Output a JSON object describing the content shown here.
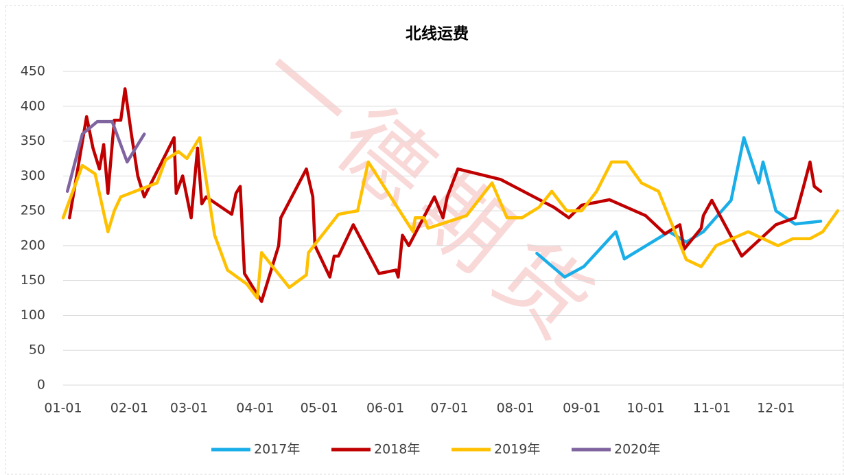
{
  "chart_data": {
    "type": "line",
    "title": "北线运费",
    "watermark": "一德期货",
    "xlim": [
      "01-01",
      "12-31"
    ],
    "xticks": [
      "01-01",
      "02-01",
      "03-01",
      "04-01",
      "05-01",
      "06-01",
      "07-01",
      "08-01",
      "09-01",
      "10-01",
      "11-01",
      "12-01"
    ],
    "ylim": [
      0,
      450
    ],
    "yticks": [
      0,
      50,
      100,
      150,
      200,
      250,
      300,
      350,
      400,
      450
    ],
    "grid": true,
    "legend": "bottom",
    "series": [
      {
        "name": "2017年",
        "color": "#1aaee8",
        "x": [
          "08-11",
          "08-24",
          "09-02",
          "09-17",
          "09-21",
          "10-12",
          "10-20",
          "10-28",
          "11-10",
          "11-16",
          "11-23",
          "11-25",
          "12-01",
          "12-10",
          "12-22"
        ],
        "values": [
          189,
          155,
          170,
          220,
          181,
          220,
          205,
          220,
          265,
          355,
          290,
          320,
          250,
          231,
          235
        ]
      },
      {
        "name": "2018年",
        "color": "#c00000",
        "x": [
          "01-04",
          "01-12",
          "01-15",
          "01-18",
          "01-20",
          "01-22",
          "01-25",
          "01-28",
          "01-30",
          "02-02",
          "02-05",
          "02-08",
          "02-22",
          "02-23",
          "02-26",
          "02-28",
          "03-02",
          "03-05",
          "03-07",
          "03-09",
          "03-21",
          "03-23",
          "03-25",
          "03-27",
          "04-04",
          "04-12",
          "04-13",
          "04-25",
          "04-28",
          "04-29",
          "05-06",
          "05-08",
          "05-10",
          "05-17",
          "05-29",
          "06-06",
          "06-07",
          "06-09",
          "06-12",
          "06-24",
          "06-28",
          "06-30",
          "07-05",
          "07-25",
          "08-19",
          "08-26",
          "09-01",
          "09-14",
          "10-01",
          "10-10",
          "10-17",
          "10-19",
          "10-27",
          "10-28",
          "11-01",
          "11-15",
          "12-01",
          "12-10",
          "12-14",
          "12-17",
          "12-19",
          "12-22"
        ],
        "values": [
          240,
          385,
          340,
          310,
          345,
          275,
          380,
          380,
          425,
          360,
          300,
          270,
          355,
          275,
          300,
          270,
          240,
          340,
          260,
          270,
          245,
          275,
          285,
          160,
          120,
          200,
          240,
          310,
          270,
          200,
          155,
          185,
          185,
          230,
          160,
          165,
          155,
          215,
          200,
          270,
          240,
          270,
          310,
          295,
          255,
          240,
          258,
          266,
          243,
          217,
          230,
          195,
          225,
          243,
          265,
          185,
          230,
          240,
          285,
          320,
          285,
          278
        ]
      },
      {
        "name": "2019年",
        "color": "#ffc000",
        "x": [
          "01-01",
          "01-10",
          "01-16",
          "01-22",
          "01-25",
          "01-28",
          "02-14",
          "02-18",
          "02-24",
          "02-28",
          "03-06",
          "03-13",
          "03-19",
          "03-28",
          "04-02",
          "04-04",
          "04-17",
          "04-25",
          "04-26",
          "05-10",
          "05-19",
          "05-24",
          "06-14",
          "06-15",
          "06-19",
          "06-21",
          "07-09",
          "07-21",
          "07-28",
          "08-04",
          "08-12",
          "08-18",
          "08-25",
          "09-01",
          "09-08",
          "09-15",
          "09-22",
          "09-29",
          "10-07",
          "10-20",
          "10-27",
          "11-03",
          "11-18",
          "12-02",
          "12-09",
          "12-17",
          "12-23",
          "12-30"
        ],
        "values": [
          240,
          315,
          303,
          220,
          250,
          270,
          290,
          323,
          335,
          325,
          355,
          215,
          165,
          145,
          125,
          190,
          140,
          158,
          190,
          245,
          250,
          320,
          220,
          240,
          240,
          225,
          243,
          290,
          240,
          240,
          255,
          278,
          250,
          250,
          278,
          320,
          320,
          290,
          278,
          180,
          170,
          200,
          220,
          200,
          210,
          210,
          220,
          250
        ]
      },
      {
        "name": "2020年",
        "color": "#7f64a0",
        "x": [
          "01-03",
          "01-10",
          "01-17",
          "01-24",
          "01-31",
          "02-08"
        ],
        "values": [
          278,
          360,
          378,
          378,
          320,
          360
        ]
      }
    ]
  }
}
